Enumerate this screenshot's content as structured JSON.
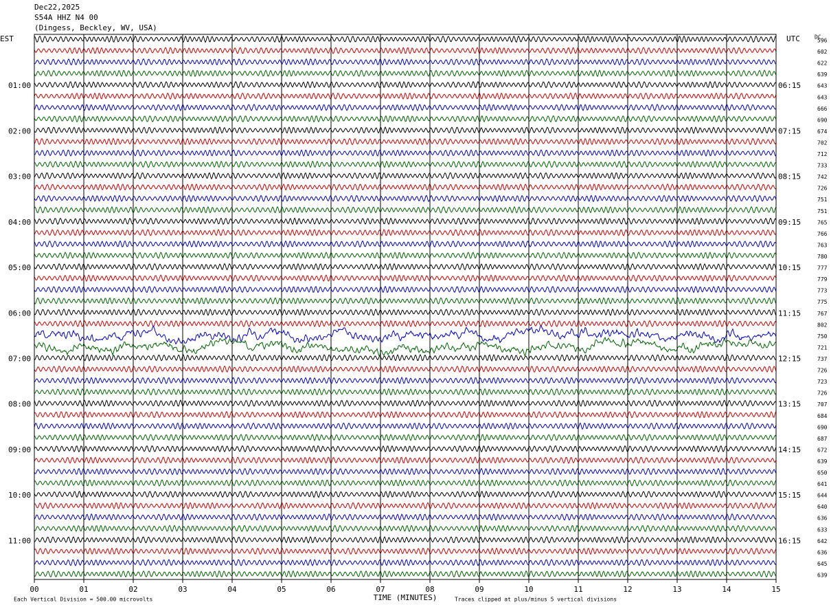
{
  "header": {
    "date": "Dec22,2025",
    "station": "S54A HHZ N4 00",
    "location": "(Dingess, Beckley, WV, USA)"
  },
  "left_axis": {
    "title": "EST",
    "labels": [
      "01:00",
      "02:00",
      "03:00",
      "04:00",
      "05:00",
      "06:00",
      "07:00",
      "08:00",
      "09:00",
      "10:00",
      "11:00"
    ]
  },
  "right_axis": {
    "title": "UTC",
    "labels": [
      "06:15",
      "07:15",
      "08:15",
      "09:15",
      "10:15",
      "11:15",
      "12:15",
      "13:15",
      "14:15",
      "15:15",
      "16:15"
    ]
  },
  "dc": {
    "title": "DC",
    "values": [
      596,
      602,
      622,
      639,
      643,
      643,
      666,
      690,
      674,
      702,
      712,
      733,
      742,
      726,
      751,
      751,
      765,
      766,
      763,
      780,
      777,
      779,
      773,
      775,
      767,
      802,
      750,
      721,
      737,
      726,
      723,
      726,
      707,
      684,
      690,
      687,
      672,
      639,
      650,
      641,
      644,
      640,
      636,
      633,
      642,
      636,
      645,
      639
    ]
  },
  "x_axis": {
    "title": "TIME (MINUTES)",
    "ticks": [
      "00",
      "01",
      "02",
      "03",
      "04",
      "05",
      "06",
      "07",
      "08",
      "09",
      "10",
      "11",
      "12",
      "13",
      "14",
      "15"
    ]
  },
  "footer": {
    "scale": "Each Vertical Division =  500.00 microvolts",
    "clip": "Traces clipped at plus/minus 5 vertical divisions"
  }
}
